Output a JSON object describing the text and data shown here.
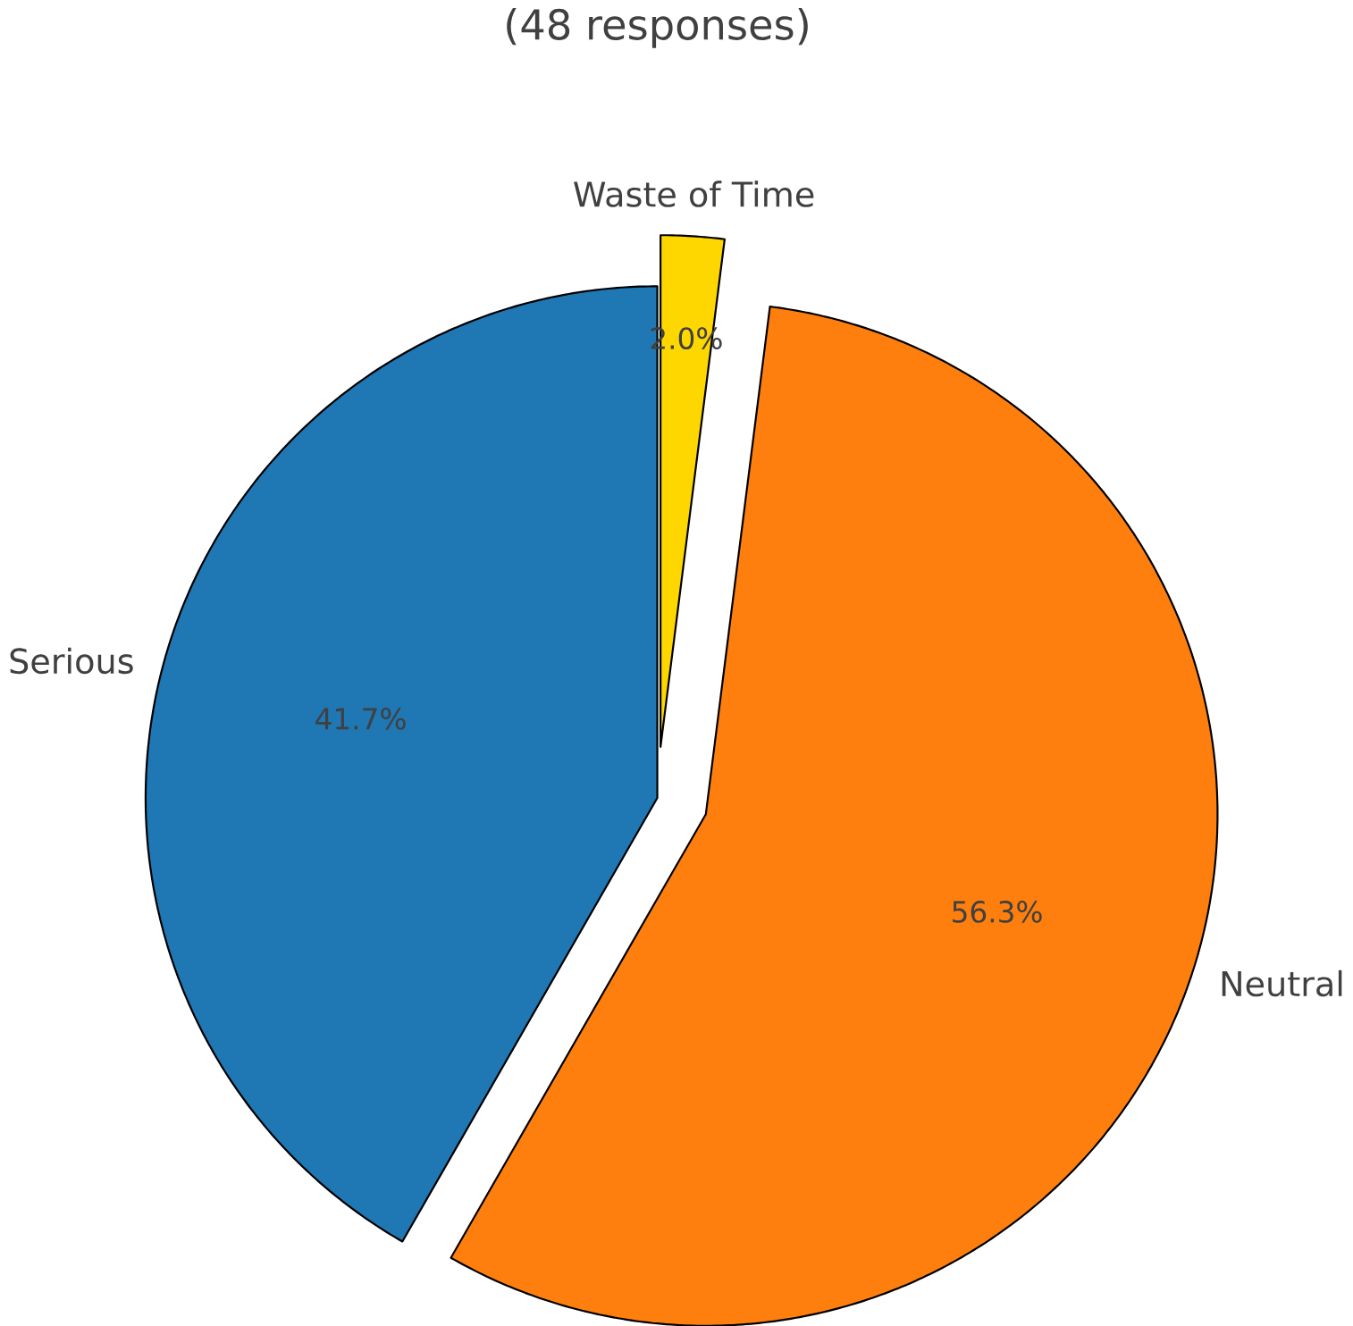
{
  "chart_data": {
    "type": "pie",
    "title": "(48 responses)",
    "categories": [
      "Serious",
      "Neutral",
      "Waste of Time"
    ],
    "values": [
      41.7,
      56.3,
      2.0
    ],
    "colors": [
      "#1f77b4",
      "#ff7f0e",
      "#ffd700"
    ],
    "value_labels": [
      "41.7%",
      "56.3%",
      "2.0%"
    ]
  }
}
